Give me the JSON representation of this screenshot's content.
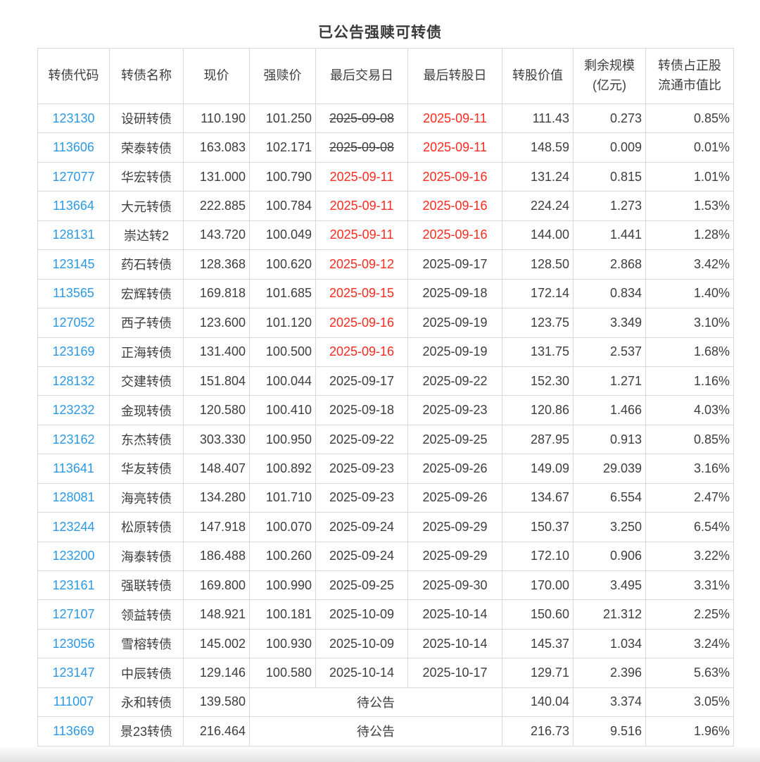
{
  "page": {
    "title": "已公告强赎可转债"
  },
  "colors": {
    "link_blue": "#2b99e5",
    "alert_red": "#fb2b20",
    "text_dark": "#3e3e3e",
    "border_gray": "#d9d9d9"
  },
  "table": {
    "headers": [
      "转债代码",
      "转债名称",
      "现价",
      "强赎价",
      "最后交易日",
      "最后转股日",
      "转股价值",
      "剩余规模\n(亿元)",
      "转债占正股\n流通市值比"
    ],
    "pending_label": "待公告",
    "rows": [
      {
        "code": "123130",
        "name": "设研转债",
        "price": "110.190",
        "redeem_price": "101.250",
        "last_trade_date": "2025-09-08",
        "last_trade_status": "expired",
        "last_convert_date": "2025-09-11",
        "last_convert_status": "urgent",
        "convert_value": "111.43",
        "remaining_size": "0.273",
        "ratio": "0.85%"
      },
      {
        "code": "113606",
        "name": "荣泰转债",
        "price": "163.083",
        "redeem_price": "102.171",
        "last_trade_date": "2025-09-08",
        "last_trade_status": "expired",
        "last_convert_date": "2025-09-11",
        "last_convert_status": "urgent",
        "convert_value": "148.59",
        "remaining_size": "0.009",
        "ratio": "0.01%"
      },
      {
        "code": "127077",
        "name": "华宏转债",
        "price": "131.000",
        "redeem_price": "100.790",
        "last_trade_date": "2025-09-11",
        "last_trade_status": "urgent",
        "last_convert_date": "2025-09-16",
        "last_convert_status": "urgent",
        "convert_value": "131.24",
        "remaining_size": "0.815",
        "ratio": "1.01%"
      },
      {
        "code": "113664",
        "name": "大元转债",
        "price": "222.885",
        "redeem_price": "100.784",
        "last_trade_date": "2025-09-11",
        "last_trade_status": "urgent",
        "last_convert_date": "2025-09-16",
        "last_convert_status": "urgent",
        "convert_value": "224.24",
        "remaining_size": "1.273",
        "ratio": "1.53%"
      },
      {
        "code": "128131",
        "name": "崇达转2",
        "price": "143.720",
        "redeem_price": "100.049",
        "last_trade_date": "2025-09-11",
        "last_trade_status": "urgent",
        "last_convert_date": "2025-09-16",
        "last_convert_status": "urgent",
        "convert_value": "144.00",
        "remaining_size": "1.441",
        "ratio": "1.28%"
      },
      {
        "code": "123145",
        "name": "药石转债",
        "price": "128.368",
        "redeem_price": "100.620",
        "last_trade_date": "2025-09-12",
        "last_trade_status": "urgent",
        "last_convert_date": "2025-09-17",
        "last_convert_status": "normal",
        "convert_value": "128.50",
        "remaining_size": "2.868",
        "ratio": "3.42%"
      },
      {
        "code": "113565",
        "name": "宏辉转债",
        "price": "169.818",
        "redeem_price": "101.685",
        "last_trade_date": "2025-09-15",
        "last_trade_status": "urgent",
        "last_convert_date": "2025-09-18",
        "last_convert_status": "normal",
        "convert_value": "172.14",
        "remaining_size": "0.834",
        "ratio": "1.40%"
      },
      {
        "code": "127052",
        "name": "西子转债",
        "price": "123.600",
        "redeem_price": "101.120",
        "last_trade_date": "2025-09-16",
        "last_trade_status": "urgent",
        "last_convert_date": "2025-09-19",
        "last_convert_status": "normal",
        "convert_value": "123.75",
        "remaining_size": "3.349",
        "ratio": "3.10%"
      },
      {
        "code": "123169",
        "name": "正海转债",
        "price": "131.400",
        "redeem_price": "100.500",
        "last_trade_date": "2025-09-16",
        "last_trade_status": "urgent",
        "last_convert_date": "2025-09-19",
        "last_convert_status": "normal",
        "convert_value": "131.75",
        "remaining_size": "2.537",
        "ratio": "1.68%"
      },
      {
        "code": "128132",
        "name": "交建转债",
        "price": "151.804",
        "redeem_price": "100.044",
        "last_trade_date": "2025-09-17",
        "last_trade_status": "normal",
        "last_convert_date": "2025-09-22",
        "last_convert_status": "normal",
        "convert_value": "152.30",
        "remaining_size": "1.271",
        "ratio": "1.16%"
      },
      {
        "code": "123232",
        "name": "金现转债",
        "price": "120.580",
        "redeem_price": "100.410",
        "last_trade_date": "2025-09-18",
        "last_trade_status": "normal",
        "last_convert_date": "2025-09-23",
        "last_convert_status": "normal",
        "convert_value": "120.86",
        "remaining_size": "1.466",
        "ratio": "4.03%"
      },
      {
        "code": "123162",
        "name": "东杰转债",
        "price": "303.330",
        "redeem_price": "100.950",
        "last_trade_date": "2025-09-22",
        "last_trade_status": "normal",
        "last_convert_date": "2025-09-25",
        "last_convert_status": "normal",
        "convert_value": "287.95",
        "remaining_size": "0.913",
        "ratio": "0.85%"
      },
      {
        "code": "113641",
        "name": "华友转债",
        "price": "148.407",
        "redeem_price": "100.892",
        "last_trade_date": "2025-09-23",
        "last_trade_status": "normal",
        "last_convert_date": "2025-09-26",
        "last_convert_status": "normal",
        "convert_value": "149.09",
        "remaining_size": "29.039",
        "ratio": "3.16%"
      },
      {
        "code": "128081",
        "name": "海亮转债",
        "price": "134.280",
        "redeem_price": "101.710",
        "last_trade_date": "2025-09-23",
        "last_trade_status": "normal",
        "last_convert_date": "2025-09-26",
        "last_convert_status": "normal",
        "convert_value": "134.67",
        "remaining_size": "6.554",
        "ratio": "2.47%"
      },
      {
        "code": "123244",
        "name": "松原转债",
        "price": "147.918",
        "redeem_price": "100.070",
        "last_trade_date": "2025-09-24",
        "last_trade_status": "normal",
        "last_convert_date": "2025-09-29",
        "last_convert_status": "normal",
        "convert_value": "150.37",
        "remaining_size": "3.250",
        "ratio": "6.54%"
      },
      {
        "code": "123200",
        "name": "海泰转债",
        "price": "186.488",
        "redeem_price": "100.260",
        "last_trade_date": "2025-09-24",
        "last_trade_status": "normal",
        "last_convert_date": "2025-09-29",
        "last_convert_status": "normal",
        "convert_value": "172.10",
        "remaining_size": "0.906",
        "ratio": "3.22%"
      },
      {
        "code": "123161",
        "name": "强联转债",
        "price": "169.800",
        "redeem_price": "100.990",
        "last_trade_date": "2025-09-25",
        "last_trade_status": "normal",
        "last_convert_date": "2025-09-30",
        "last_convert_status": "normal",
        "convert_value": "170.00",
        "remaining_size": "3.495",
        "ratio": "3.31%"
      },
      {
        "code": "127107",
        "name": "领益转债",
        "price": "148.921",
        "redeem_price": "100.181",
        "last_trade_date": "2025-10-09",
        "last_trade_status": "normal",
        "last_convert_date": "2025-10-14",
        "last_convert_status": "normal",
        "convert_value": "150.60",
        "remaining_size": "21.312",
        "ratio": "2.25%"
      },
      {
        "code": "123056",
        "name": "雪榕转债",
        "price": "145.002",
        "redeem_price": "100.930",
        "last_trade_date": "2025-10-09",
        "last_trade_status": "normal",
        "last_convert_date": "2025-10-14",
        "last_convert_status": "normal",
        "convert_value": "145.37",
        "remaining_size": "1.034",
        "ratio": "3.24%"
      },
      {
        "code": "123147",
        "name": "中辰转债",
        "price": "129.146",
        "redeem_price": "100.580",
        "last_trade_date": "2025-10-14",
        "last_trade_status": "normal",
        "last_convert_date": "2025-10-17",
        "last_convert_status": "normal",
        "convert_value": "129.71",
        "remaining_size": "2.396",
        "ratio": "5.63%"
      },
      {
        "code": "111007",
        "name": "永和转债",
        "price": "139.580",
        "pending": true,
        "convert_value": "140.04",
        "remaining_size": "3.374",
        "ratio": "3.05%"
      },
      {
        "code": "113669",
        "name": "景23转债",
        "price": "216.464",
        "pending": true,
        "convert_value": "216.73",
        "remaining_size": "9.516",
        "ratio": "1.96%"
      }
    ]
  }
}
